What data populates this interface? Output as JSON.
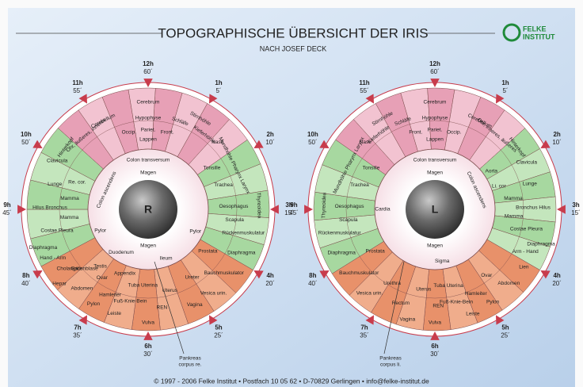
{
  "header": {
    "title": "TOPOGRAPHISCHE ÜBERSICHT DER IRIS",
    "subtitle": "NACH JOSEF DECK",
    "logo": [
      "FELKE",
      "INSTITUT"
    ]
  },
  "clock": [
    {
      "hour": "12h",
      "minute": "60´"
    },
    {
      "hour": "1h",
      "minute": "5´"
    },
    {
      "hour": "2h",
      "minute": "10´"
    },
    {
      "hour": "3h",
      "minute": "15´"
    },
    {
      "hour": "4h",
      "minute": "20´"
    },
    {
      "hour": "5h",
      "minute": "25´"
    },
    {
      "hour": "6h",
      "minute": "30´"
    },
    {
      "hour": "7h",
      "minute": "35´"
    },
    {
      "hour": "8h",
      "minute": "40´"
    },
    {
      "hour": "9h",
      "minute": "45´"
    },
    {
      "hour": "10h",
      "minute": "50´"
    },
    {
      "hour": "11h",
      "minute": "55´"
    }
  ],
  "irises": [
    {
      "pupil": "R",
      "zones": [
        "Cerebrum",
        "Hypophyse",
        "Occip.",
        "Pariet.",
        "Front.",
        "Lappen",
        "Cerebellum",
        "Ohr, äußeres, inneres",
        "Hinterkopf",
        "Schläfe",
        "Stirnhöhle",
        "Kieferhöhle",
        "Nase",
        "Mundhöhle Pharynx Larynx",
        "Tonsille",
        "Trachea",
        "Thyreoidea",
        "Oesophagus",
        "Scapula",
        "Rückenmuskulatur",
        "Diaphragma",
        "Bauchmuskulator",
        "Prostata",
        "Ureter",
        "Vesica urin.",
        "Vagina",
        "Uterus",
        "REN",
        "Vulva",
        "Tuba Uterina",
        "Fuß-Knie-Bein",
        "Leiste",
        "Hamleiter",
        "Pylon",
        "Ovar",
        "Testis",
        "Abdomen",
        "Gallenblase",
        "Cholangion",
        "Hepar",
        "Hand - Arm",
        "Diaphragma",
        "Costae Pleura",
        "Mamma",
        "Hilus Bronchus",
        "Mamma",
        "Lunge",
        "Re. cor.",
        "Clavicula",
        "Colon transversum",
        "Colon ascendens",
        "Magen",
        "Magen",
        "Ileum",
        "Duodenum",
        "Appendix",
        "Pylor",
        "Pylor"
      ],
      "pancreas": [
        "Pankreas",
        "corpus re."
      ]
    },
    {
      "pupil": "L",
      "zones": [
        "Cerebrum",
        "Hypophyse",
        "Front.",
        "Pariet.",
        "Occip.",
        "Lappen",
        "Cerebellum",
        "Ohr, inneres, äußeres",
        "Hinterkopf",
        "Schläfe",
        "Stirnhöhle",
        "Kieferhöhle",
        "Nase",
        "Mundhöhle Pharynx Larynx",
        "Tonsille",
        "Trachea",
        "Thyreoidea",
        "Oesophagus",
        "Scapula",
        "Rückenmuskulatur",
        "Diaphragma",
        "Bauchmuskulator",
        "Prostata",
        "Vesica urin.",
        "Urethra",
        "Rectum",
        "Vagina",
        "Uterus",
        "REN",
        "Vulva",
        "Tuba Uterina",
        "Fuß-Knie-Bein",
        "Leiste",
        "Hamleiter",
        "Pylon",
        "Ovar",
        "Abdomen",
        "Lien",
        "Arm - Hand",
        "Diaphragma",
        "Costae Pleura",
        "Mamma",
        "Bronchus Hilus",
        "Mamma",
        "Lunge",
        "Clavicula",
        "Aorta",
        "Li. cor",
        "Colon transversum",
        "Colon ascendens",
        "Magen",
        "Magen",
        "Cardia",
        "Sigma"
      ],
      "pancreas": [
        "Pankreas",
        "corpus li."
      ]
    }
  ],
  "footer": "© 1997 - 2006 Felke Institut • Postfach 10 05 62 • D-70829 Gerlingen • info@felke-institut.de"
}
